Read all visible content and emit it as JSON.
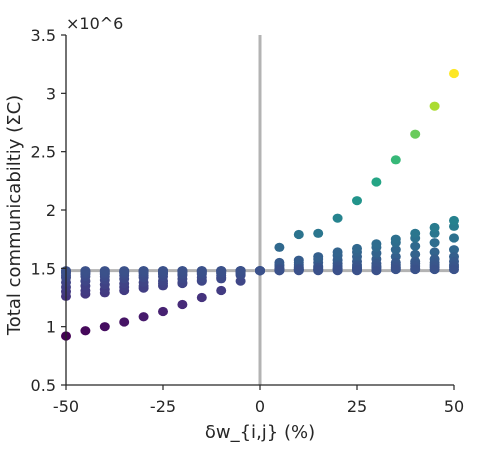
{
  "chart_data": {
    "type": "scatter",
    "xlabel": "δw_{i,j} (%)",
    "ylabel": "Total communicabiltiy (ΣC)",
    "exponent_label": "×10^6",
    "xlim": [
      -50,
      50
    ],
    "ylim": [
      0.5,
      3.5
    ],
    "xticks": [
      -50,
      -25,
      0,
      25,
      50
    ],
    "xtick_labels": [
      "-50",
      "-25",
      "0",
      "25",
      "50"
    ],
    "yticks": [
      0.5,
      1,
      1.5,
      2,
      2.5,
      3,
      3.5
    ],
    "ytick_labels": [
      "0.5",
      "1",
      "1.5",
      "2",
      "2.5",
      "3",
      "3.5"
    ],
    "grid": false,
    "reference_lines": {
      "vertical_x": 0,
      "horizontal_y": 1.48,
      "color": "#b3b3b3"
    },
    "colormap": "viridis",
    "color_scale": {
      "min": 0.92,
      "max": 3.17
    },
    "x": [
      -50,
      -45,
      -40,
      -35,
      -30,
      -25,
      -20,
      -15,
      -10,
      -5,
      0,
      5,
      10,
      15,
      20,
      25,
      30,
      35,
      40,
      45,
      50
    ],
    "series": [
      {
        "values": [
          0.92,
          0.965,
          1.0,
          1.04,
          1.085,
          1.13,
          1.19,
          1.25,
          1.31,
          1.39,
          1.48,
          1.68,
          1.79,
          1.8,
          1.93,
          2.08,
          2.24,
          2.43,
          2.65,
          2.89,
          3.17
        ]
      },
      {
        "values": [
          1.26,
          1.28,
          1.29,
          1.31,
          1.33,
          1.35,
          1.37,
          1.39,
          1.41,
          1.44,
          1.48,
          1.5,
          1.51,
          1.52,
          1.54,
          1.56,
          1.58,
          1.6,
          1.62,
          1.64,
          1.66
        ]
      },
      {
        "values": [
          1.3,
          1.31,
          1.32,
          1.34,
          1.35,
          1.37,
          1.38,
          1.4,
          1.42,
          1.45,
          1.48,
          1.52,
          1.53,
          1.55,
          1.57,
          1.6,
          1.63,
          1.66,
          1.69,
          1.72,
          1.76
        ]
      },
      {
        "values": [
          1.34,
          1.35,
          1.36,
          1.37,
          1.38,
          1.39,
          1.41,
          1.42,
          1.44,
          1.46,
          1.48,
          1.53,
          1.55,
          1.58,
          1.61,
          1.64,
          1.68,
          1.72,
          1.76,
          1.8,
          1.86
        ]
      },
      {
        "values": [
          1.38,
          1.39,
          1.4,
          1.41,
          1.42,
          1.43,
          1.44,
          1.45,
          1.46,
          1.47,
          1.48,
          1.55,
          1.57,
          1.6,
          1.64,
          1.67,
          1.71,
          1.75,
          1.8,
          1.85,
          1.91
        ]
      },
      {
        "values": [
          1.42,
          1.43,
          1.43,
          1.44,
          1.44,
          1.45,
          1.45,
          1.46,
          1.46,
          1.47,
          1.48,
          1.5,
          1.5,
          1.51,
          1.52,
          1.53,
          1.54,
          1.55,
          1.56,
          1.58,
          1.6
        ]
      },
      {
        "values": [
          1.44,
          1.45,
          1.45,
          1.46,
          1.46,
          1.46,
          1.47,
          1.47,
          1.47,
          1.48,
          1.48,
          1.49,
          1.49,
          1.5,
          1.5,
          1.51,
          1.52,
          1.53,
          1.54,
          1.55,
          1.56
        ]
      },
      {
        "values": [
          1.46,
          1.46,
          1.46,
          1.47,
          1.47,
          1.47,
          1.47,
          1.47,
          1.48,
          1.48,
          1.48,
          1.49,
          1.49,
          1.49,
          1.5,
          1.5,
          1.51,
          1.51,
          1.52,
          1.53,
          1.53
        ]
      },
      {
        "values": [
          1.47,
          1.47,
          1.47,
          1.47,
          1.48,
          1.48,
          1.48,
          1.48,
          1.48,
          1.48,
          1.48,
          1.48,
          1.49,
          1.49,
          1.49,
          1.49,
          1.5,
          1.5,
          1.5,
          1.51,
          1.51
        ]
      },
      {
        "values": [
          1.48,
          1.48,
          1.48,
          1.48,
          1.48,
          1.48,
          1.48,
          1.48,
          1.48,
          1.48,
          1.48,
          1.48,
          1.48,
          1.48,
          1.48,
          1.48,
          1.48,
          1.49,
          1.49,
          1.49,
          1.49
        ]
      }
    ]
  }
}
